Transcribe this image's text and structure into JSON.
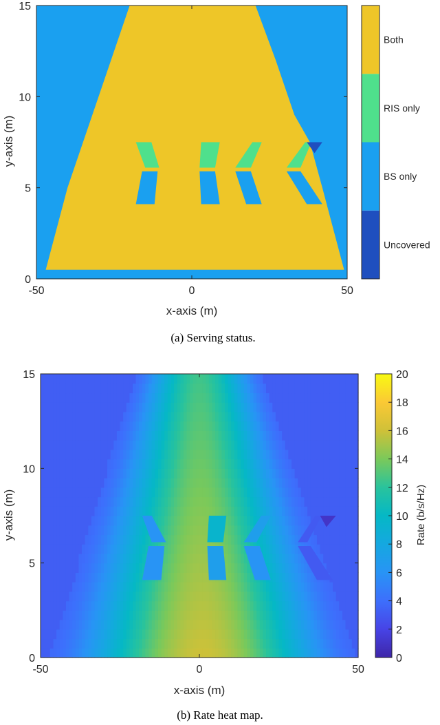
{
  "chart_data": [
    {
      "type": "heatmap",
      "caption": "(a)  Serving status.",
      "xlabel": "x-axis (m)",
      "ylabel": "y-axis (m)",
      "xlim": [
        -50,
        50
      ],
      "ylim": [
        0,
        15
      ],
      "xticks": [
        -50,
        0,
        50
      ],
      "yticks": [
        0,
        5,
        10,
        15
      ],
      "categories": [
        "Uncovered",
        "BS only",
        "RIS only",
        "Both"
      ],
      "colors": {
        "Uncovered": "#1f4fbf",
        "BS only": "#1aa0f0",
        "RIS only": "#4fe08c",
        "Both": "#eec628"
      },
      "regions": {
        "both_boundary_left": [
          [
            -20,
            15
          ],
          [
            -25,
            12.5
          ],
          [
            -32,
            9
          ],
          [
            -40,
            5
          ],
          [
            -47,
            0.5
          ]
        ],
        "both_boundary_right": [
          [
            20.5,
            15
          ],
          [
            27,
            12
          ],
          [
            33,
            9
          ],
          [
            38,
            7.5
          ],
          [
            42,
            5
          ],
          [
            49,
            0.5
          ]
        ]
      },
      "obstacles": [
        {
          "status": "RIS only",
          "poly": [
            [
              -18,
              7.5
            ],
            [
              -13,
              7.5
            ],
            [
              -10.5,
              6.1
            ],
            [
              -15,
              6.1
            ]
          ]
        },
        {
          "status": "BS only",
          "poly": [
            [
              -16,
              5.9
            ],
            [
              -11,
              5.9
            ],
            [
              -12,
              4.1
            ],
            [
              -18,
              4.1
            ]
          ]
        },
        {
          "status": "RIS only",
          "poly": [
            [
              3,
              7.5
            ],
            [
              9,
              7.5
            ],
            [
              7.5,
              6.1
            ],
            [
              2.5,
              6.1
            ]
          ]
        },
        {
          "status": "BS only",
          "poly": [
            [
              2.5,
              5.9
            ],
            [
              7.5,
              5.9
            ],
            [
              9,
              4.1
            ],
            [
              3,
              4.1
            ]
          ]
        },
        {
          "status": "RIS only",
          "poly": [
            [
              19.5,
              7.5
            ],
            [
              22.5,
              7.5
            ],
            [
              19,
              6.1
            ],
            [
              14,
              6.1
            ]
          ]
        },
        {
          "status": "BS only",
          "poly": [
            [
              14,
              5.9
            ],
            [
              19,
              5.9
            ],
            [
              22.5,
              4.1
            ],
            [
              17.5,
              4.1
            ]
          ]
        },
        {
          "status": "RIS only",
          "poly": [
            [
              36.5,
              7.5
            ],
            [
              38.5,
              7.5
            ],
            [
              35,
              6.1
            ],
            [
              30.5,
              6.1
            ]
          ]
        },
        {
          "status": "BS only",
          "poly": [
            [
              30.5,
              5.9
            ],
            [
              35,
              5.9
            ],
            [
              42,
              4.1
            ],
            [
              37,
              4.1
            ]
          ]
        },
        {
          "status": "Uncovered",
          "poly": [
            [
              37,
              7.5
            ],
            [
              42,
              7.5
            ],
            [
              39.5,
              6.9
            ]
          ]
        }
      ]
    },
    {
      "type": "heatmap",
      "caption": "(b)  Rate heat map.",
      "xlabel": "x-axis (m)",
      "ylabel": "y-axis (m)",
      "xlim": [
        -50,
        50
      ],
      "ylim": [
        0,
        15
      ],
      "xticks": [
        -50,
        0,
        50
      ],
      "yticks": [
        0,
        5,
        10,
        15
      ],
      "colorbar": {
        "label": "Rate (b/s/Hz)",
        "range": [
          0,
          20
        ],
        "ticks": [
          0,
          2,
          4,
          6,
          8,
          10,
          12,
          14,
          16,
          18,
          20
        ]
      },
      "rate_model": {
        "center_peak": 16,
        "edge_value": 3.8,
        "outside_value": 3.2,
        "cone_left": [
          [
            -20,
            15
          ],
          [
            -47,
            0
          ]
        ],
        "cone_right": [
          [
            20,
            15
          ],
          [
            49,
            0
          ]
        ]
      },
      "obstacles": [
        {
          "rate": 6,
          "poly": [
            [
              -18,
              7.5
            ],
            [
              -15,
              7.5
            ],
            [
              -10.5,
              6.1
            ],
            [
              -15,
              6.1
            ]
          ]
        },
        {
          "rate": 6,
          "poly": [
            [
              -16,
              5.9
            ],
            [
              -11,
              5.9
            ],
            [
              -12,
              4.1
            ],
            [
              -18,
              4.1
            ]
          ]
        },
        {
          "rate": 9.5,
          "poly": [
            [
              3,
              7.5
            ],
            [
              8.5,
              7.5
            ],
            [
              7.5,
              6.1
            ],
            [
              2.5,
              6.1
            ]
          ]
        },
        {
          "rate": 7,
          "poly": [
            [
              2.5,
              5.9
            ],
            [
              7.5,
              5.9
            ],
            [
              8.5,
              4.1
            ],
            [
              3,
              4.1
            ]
          ]
        },
        {
          "rate": 7,
          "poly": [
            [
              19.5,
              7.5
            ],
            [
              22.5,
              7.5
            ],
            [
              18,
              6.1
            ],
            [
              14,
              6.1
            ]
          ]
        },
        {
          "rate": 6,
          "poly": [
            [
              14,
              5.9
            ],
            [
              19,
              5.9
            ],
            [
              22.5,
              4.1
            ],
            [
              17.5,
              4.1
            ]
          ]
        },
        {
          "rate": 3,
          "poly": [
            [
              36.5,
              7.5
            ],
            [
              38.5,
              7.5
            ],
            [
              34,
              6.1
            ],
            [
              31,
              6.1
            ]
          ]
        },
        {
          "rate": 3,
          "poly": [
            [
              31,
              5.9
            ],
            [
              35,
              5.9
            ],
            [
              42,
              4.1
            ],
            [
              37,
              4.1
            ]
          ]
        },
        {
          "rate": 1,
          "poly": [
            [
              38,
              7.5
            ],
            [
              43,
              7.5
            ],
            [
              40,
              6.9
            ]
          ]
        }
      ]
    }
  ]
}
